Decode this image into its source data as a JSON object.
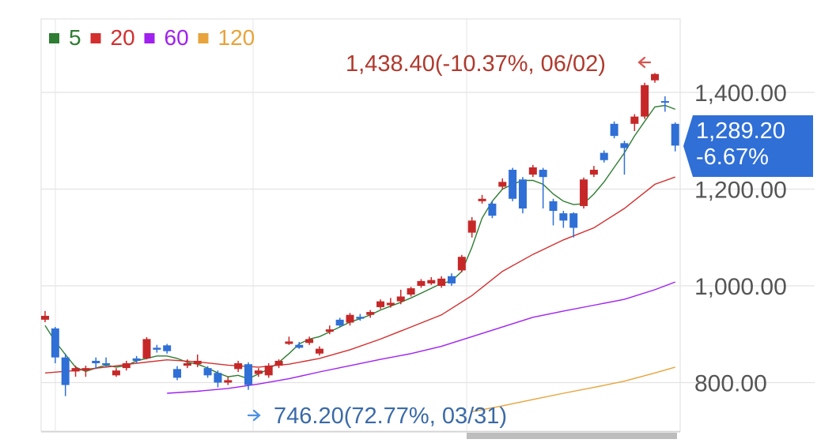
{
  "chart_data": {
    "type": "candlestick",
    "legend": [
      {
        "label": "5",
        "color": "#2e7d32"
      },
      {
        "label": "20",
        "color": "#d32f2f"
      },
      {
        "label": "60",
        "color": "#a020f0"
      },
      {
        "label": "120",
        "color": "#e8a33a"
      }
    ],
    "y_ticks": [
      "1,400.00",
      "1,200.00",
      "1,000.00",
      "800.00"
    ],
    "y_tick_values": [
      1400,
      1200,
      1000,
      800
    ],
    "ylim": [
      760,
      1580
    ],
    "grid": true,
    "legend_position": "top-left",
    "colors": {
      "up": "#c62828",
      "down": "#2f6fd6"
    },
    "high_annotation": {
      "text": "1,438.40(-10.37%, 06/02)",
      "value": 1438.4
    },
    "low_annotation": {
      "text": "746.20(72.77%, 03/31)",
      "value": 746.2
    },
    "current": {
      "price": "1,289.20",
      "change": "-6.67%",
      "value": 1289.2
    },
    "candles": [
      [
        930,
        938,
        948,
        925
      ],
      [
        912,
        852,
        915,
        840
      ],
      [
        852,
        795,
        860,
        772
      ],
      [
        823,
        830,
        835,
        812
      ],
      [
        825,
        830,
        835,
        812
      ],
      [
        845,
        840,
        852,
        828
      ],
      [
        840,
        838,
        852,
        832
      ],
      [
        815,
        825,
        830,
        812
      ],
      [
        830,
        840,
        845,
        825
      ],
      [
        850,
        845,
        855,
        840
      ],
      [
        850,
        890,
        894,
        848
      ],
      [
        872,
        868,
        878,
        862
      ],
      [
        877,
        865,
        880,
        860
      ],
      [
        828,
        810,
        834,
        805
      ],
      [
        835,
        840,
        848,
        830
      ],
      [
        838,
        845,
        858,
        832
      ],
      [
        830,
        815,
        834,
        810
      ],
      [
        820,
        800,
        825,
        790
      ],
      [
        800,
        805,
        812,
        795
      ],
      [
        828,
        840,
        845,
        822
      ],
      [
        838,
        795,
        842,
        785
      ],
      [
        818,
        825,
        830,
        812
      ],
      [
        815,
        835,
        840,
        810
      ],
      [
        835,
        845,
        848,
        830
      ],
      [
        880,
        885,
        895,
        878
      ],
      [
        878,
        872,
        884,
        870
      ],
      [
        882,
        890,
        895,
        878
      ],
      [
        860,
        870,
        875,
        856
      ],
      [
        905,
        910,
        918,
        900
      ],
      [
        930,
        918,
        934,
        915
      ],
      [
        924,
        940,
        944,
        918
      ],
      [
        936,
        932,
        942,
        928
      ],
      [
        940,
        946,
        950,
        934
      ],
      [
        956,
        968,
        972,
        952
      ],
      [
        960,
        965,
        975,
        955
      ],
      [
        968,
        978,
        992,
        962
      ],
      [
        982,
        995,
        998,
        978
      ],
      [
        1000,
        1010,
        1014,
        996
      ],
      [
        1005,
        1012,
        1018,
        1002
      ],
      [
        1000,
        1015,
        1020,
        996
      ],
      [
        1020,
        1005,
        1026,
        1000
      ],
      [
        1032,
        1060,
        1064,
        1028
      ],
      [
        1110,
        1135,
        1142,
        1100
      ],
      [
        1175,
        1180,
        1188,
        1170
      ],
      [
        1170,
        1145,
        1176,
        1140
      ],
      [
        1205,
        1215,
        1222,
        1200
      ],
      [
        1240,
        1180,
        1244,
        1175
      ],
      [
        1220,
        1160,
        1225,
        1150
      ],
      [
        1230,
        1245,
        1250,
        1225
      ],
      [
        1240,
        1225,
        1244,
        1160
      ],
      [
        1175,
        1155,
        1180,
        1125
      ],
      [
        1150,
        1135,
        1155,
        1120
      ],
      [
        1150,
        1120,
        1152,
        1100
      ],
      [
        1165,
        1220,
        1224,
        1160
      ],
      [
        1230,
        1240,
        1248,
        1225
      ],
      [
        1275,
        1260,
        1280,
        1255
      ],
      [
        1335,
        1310,
        1340,
        1305
      ],
      [
        1295,
        1285,
        1300,
        1230
      ],
      [
        1335,
        1350,
        1355,
        1320
      ],
      [
        1350,
        1415,
        1420,
        1345
      ],
      [
        1425,
        1438,
        1440,
        1420
      ],
      [
        1382,
        1380,
        1392,
        1360
      ],
      [
        1335,
        1290,
        1338,
        1278
      ]
    ],
    "series": [
      {
        "label": "5",
        "color": "#2e7d32",
        "values": [
          [
            0,
            918
          ],
          [
            1,
            885
          ],
          [
            2,
            858
          ],
          [
            3,
            832
          ],
          [
            4,
            823
          ],
          [
            5,
            830
          ],
          [
            6,
            836
          ],
          [
            7,
            832
          ],
          [
            8,
            835
          ],
          [
            9,
            845
          ],
          [
            10,
            850
          ],
          [
            11,
            855
          ],
          [
            12,
            855
          ],
          [
            13,
            850
          ],
          [
            14,
            842
          ],
          [
            15,
            838
          ],
          [
            16,
            830
          ],
          [
            17,
            820
          ],
          [
            18,
            812
          ],
          [
            19,
            815
          ],
          [
            20,
            808
          ],
          [
            21,
            818
          ],
          [
            22,
            828
          ],
          [
            23,
            842
          ],
          [
            24,
            860
          ],
          [
            25,
            880
          ],
          [
            26,
            890
          ],
          [
            27,
            895
          ],
          [
            28,
            905
          ],
          [
            29,
            915
          ],
          [
            30,
            925
          ],
          [
            31,
            932
          ],
          [
            32,
            940
          ],
          [
            33,
            950
          ],
          [
            34,
            958
          ],
          [
            35,
            966
          ],
          [
            36,
            975
          ],
          [
            37,
            985
          ],
          [
            38,
            995
          ],
          [
            39,
            1005
          ],
          [
            40,
            1010
          ],
          [
            41,
            1030
          ],
          [
            42,
            1080
          ],
          [
            43,
            1140
          ],
          [
            44,
            1175
          ],
          [
            45,
            1200
          ],
          [
            46,
            1210
          ],
          [
            47,
            1218
          ],
          [
            48,
            1218
          ],
          [
            49,
            1210
          ],
          [
            50,
            1190
          ],
          [
            51,
            1175
          ],
          [
            52,
            1168
          ],
          [
            53,
            1170
          ],
          [
            54,
            1190
          ],
          [
            55,
            1215
          ],
          [
            56,
            1245
          ],
          [
            57,
            1275
          ],
          [
            58,
            1310
          ],
          [
            59,
            1340
          ],
          [
            60,
            1370
          ],
          [
            61,
            1373
          ],
          [
            62,
            1365
          ]
        ]
      },
      {
        "label": "20",
        "color": "#d32f2f",
        "values": [
          [
            0,
            820
          ],
          [
            3,
            825
          ],
          [
            6,
            832
          ],
          [
            9,
            840
          ],
          [
            12,
            847
          ],
          [
            15,
            843
          ],
          [
            18,
            836
          ],
          [
            21,
            832
          ],
          [
            24,
            838
          ],
          [
            27,
            850
          ],
          [
            30,
            868
          ],
          [
            33,
            890
          ],
          [
            36,
            915
          ],
          [
            39,
            940
          ],
          [
            42,
            980
          ],
          [
            45,
            1030
          ],
          [
            48,
            1065
          ],
          [
            51,
            1095
          ],
          [
            54,
            1120
          ],
          [
            57,
            1160
          ],
          [
            60,
            1210
          ],
          [
            62,
            1225
          ]
        ]
      },
      {
        "label": "60",
        "color": "#a020f0",
        "values": [
          [
            12,
            778
          ],
          [
            15,
            782
          ],
          [
            18,
            788
          ],
          [
            21,
            797
          ],
          [
            24,
            808
          ],
          [
            27,
            822
          ],
          [
            30,
            835
          ],
          [
            33,
            848
          ],
          [
            36,
            860
          ],
          [
            39,
            875
          ],
          [
            42,
            895
          ],
          [
            45,
            915
          ],
          [
            48,
            935
          ],
          [
            51,
            948
          ],
          [
            54,
            960
          ],
          [
            57,
            972
          ],
          [
            60,
            992
          ],
          [
            62,
            1008
          ]
        ]
      },
      {
        "label": "120",
        "color": "#e8a33a",
        "values": [
          [
            42,
            740
          ],
          [
            45,
            752
          ],
          [
            48,
            765
          ],
          [
            51,
            778
          ],
          [
            54,
            790
          ],
          [
            57,
            803
          ],
          [
            60,
            820
          ],
          [
            62,
            832
          ]
        ]
      }
    ]
  }
}
